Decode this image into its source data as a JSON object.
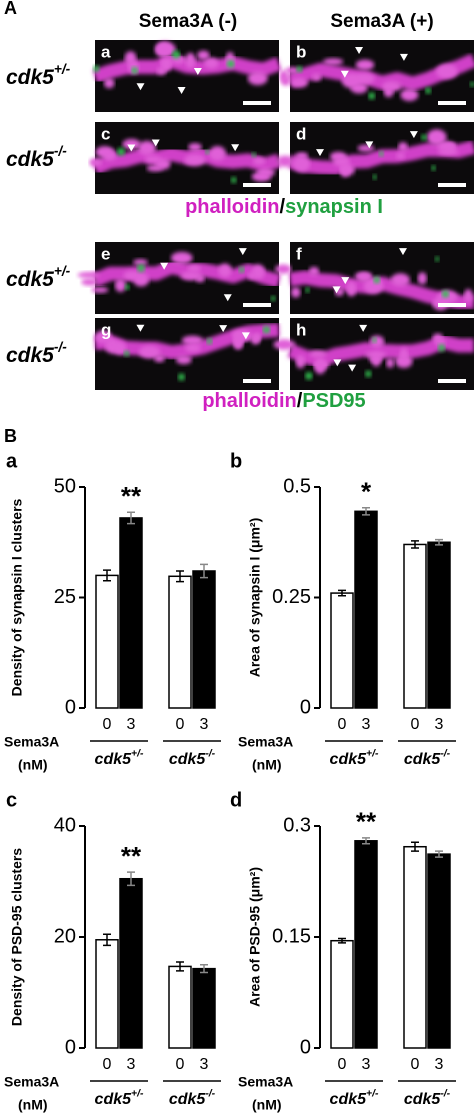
{
  "panel_a": {
    "label": "A",
    "columns": [
      "Sema3A (-)",
      "Sema3A (+)"
    ],
    "rows": [
      {
        "base": "cdk5",
        "sup": "+/-"
      },
      {
        "base": "cdk5",
        "sup": "-/-"
      },
      {
        "base": "cdk5",
        "sup": "+/-"
      },
      {
        "base": "cdk5",
        "sup": "-/-"
      }
    ],
    "image_letters": [
      "a",
      "b",
      "c",
      "d",
      "e",
      "f",
      "g",
      "h"
    ],
    "captions": [
      {
        "first": "phalloidin",
        "sep": "/",
        "second": "synapsin I"
      },
      {
        "first": "phalloidin",
        "sep": "/",
        "second": "PSD95"
      }
    ]
  },
  "panel_b_label": "B",
  "chart_data": [
    {
      "type": "bar",
      "letter": "a",
      "ylabel": "Density of synapsin I clusters",
      "ylim": [
        0,
        50
      ],
      "yticks": [
        0,
        25,
        50
      ],
      "groups": [
        {
          "base": "cdk5",
          "sup": "+/-"
        },
        {
          "base": "cdk5",
          "sup": "-/-"
        }
      ],
      "series": [
        {
          "name": "0",
          "color": "#ffffff",
          "values": [
            30,
            29.8
          ],
          "errors": [
            1.2,
            1.2
          ]
        },
        {
          "name": "3",
          "color": "#000000",
          "values": [
            43,
            31
          ],
          "errors": [
            1.3,
            1.5
          ]
        }
      ],
      "annotation": "**",
      "xlabel": "Sema3A",
      "xunit": "(nM)"
    },
    {
      "type": "bar",
      "letter": "b",
      "ylabel": "Area of synapsin I (μm²)",
      "ylim": [
        0,
        0.5
      ],
      "yticks": [
        0,
        0.25,
        0.5
      ],
      "groups": [
        {
          "base": "cdk5",
          "sup": "+/-"
        },
        {
          "base": "cdk5",
          "sup": "-/-"
        }
      ],
      "series": [
        {
          "name": "0",
          "color": "#ffffff",
          "values": [
            0.26,
            0.37
          ],
          "errors": [
            0.006,
            0.008
          ]
        },
        {
          "name": "3",
          "color": "#000000",
          "values": [
            0.445,
            0.375
          ],
          "errors": [
            0.008,
            0.006
          ]
        }
      ],
      "annotation": "*",
      "xlabel": "Sema3A",
      "xunit": "(nM)"
    },
    {
      "type": "bar",
      "letter": "c",
      "ylabel": "Density of PSD-95 clusters",
      "ylim": [
        0,
        40
      ],
      "yticks": [
        0,
        20,
        40
      ],
      "groups": [
        {
          "base": "cdk5",
          "sup": "+/-"
        },
        {
          "base": "cdk5",
          "sup": "-/-"
        }
      ],
      "series": [
        {
          "name": "0",
          "color": "#ffffff",
          "values": [
            19.5,
            14.7
          ],
          "errors": [
            1,
            0.8
          ]
        },
        {
          "name": "3",
          "color": "#000000",
          "values": [
            30.5,
            14.3
          ],
          "errors": [
            1.2,
            0.7
          ]
        }
      ],
      "annotation": "**",
      "xlabel": "Sema3A",
      "xunit": "(nM)"
    },
    {
      "type": "bar",
      "letter": "d",
      "ylabel": "Area of PSD-95 (μm²)",
      "ylim": [
        0,
        0.3
      ],
      "yticks": [
        0,
        0.15,
        0.3
      ],
      "groups": [
        {
          "base": "cdk5",
          "sup": "+/-"
        },
        {
          "base": "cdk5",
          "sup": "-/-"
        }
      ],
      "series": [
        {
          "name": "0",
          "color": "#ffffff",
          "values": [
            0.145,
            0.272
          ],
          "errors": [
            0.003,
            0.006
          ]
        },
        {
          "name": "3",
          "color": "#000000",
          "values": [
            0.28,
            0.262
          ],
          "errors": [
            0.004,
            0.004
          ]
        }
      ],
      "annotation": "**",
      "xlabel": "Sema3A",
      "xunit": "(nM)"
    }
  ]
}
